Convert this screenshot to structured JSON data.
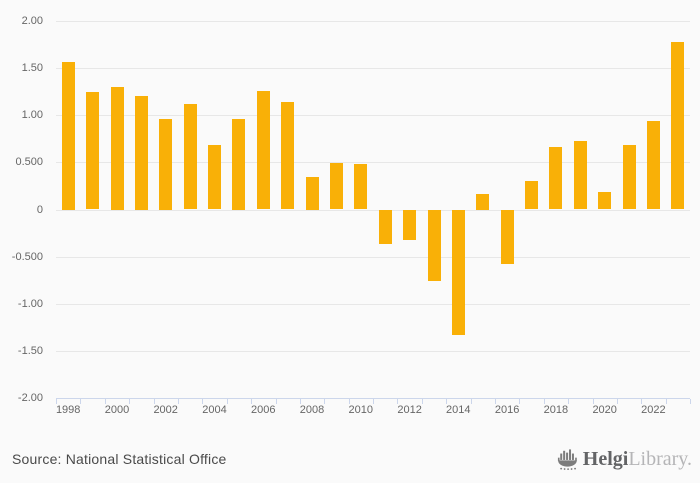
{
  "chart_data": {
    "type": "bar",
    "title": "",
    "xlabel": "",
    "ylabel": "",
    "categories": [
      "1998",
      "1999",
      "2000",
      "2001",
      "2002",
      "2003",
      "2004",
      "2005",
      "2006",
      "2007",
      "2008",
      "2009",
      "2010",
      "2011",
      "2012",
      "2013",
      "2014",
      "2015",
      "2016",
      "2017",
      "2018",
      "2019",
      "2020",
      "2021",
      "2022",
      "2023"
    ],
    "values": [
      1.57,
      1.25,
      1.3,
      1.21,
      0.96,
      1.12,
      0.68,
      0.96,
      1.26,
      1.14,
      0.35,
      0.49,
      0.48,
      -0.37,
      -0.32,
      -0.76,
      -1.33,
      0.17,
      -0.58,
      0.3,
      0.66,
      0.73,
      0.19,
      0.68,
      0.94,
      1.78
    ],
    "ylim": [
      -2.0,
      2.0
    ],
    "ytick_step": 0.5,
    "ytick_labels_top_to_bottom": [
      "2.00",
      "1.50",
      "1.00",
      "0.500",
      "0",
      "-0.500",
      "-1.00",
      "-1.50",
      "-2.00"
    ],
    "xtick_labels": [
      "1998",
      "2000",
      "2002",
      "2004",
      "2006",
      "2008",
      "2010",
      "2012",
      "2014",
      "2016",
      "2018",
      "2020",
      "2022"
    ],
    "xtick_label_every": 2,
    "grid": true,
    "legend": false
  },
  "colors": {
    "background": "#fafafa",
    "bar": "#f9b007",
    "gridline": "#e7e7e7",
    "axis_line": "#ccd6eb",
    "tick_label": "#666666",
    "source_text": "#4a4a4a",
    "logo_primary": "#636466",
    "logo_secondary": "#b5b5b7",
    "logo_icon": "#7d7d7d"
  },
  "footer": {
    "source": "Source: National Statistical Office",
    "logo": {
      "icon": "helgi-ship-icon",
      "primary": "Helgi",
      "secondary": "Library."
    }
  }
}
